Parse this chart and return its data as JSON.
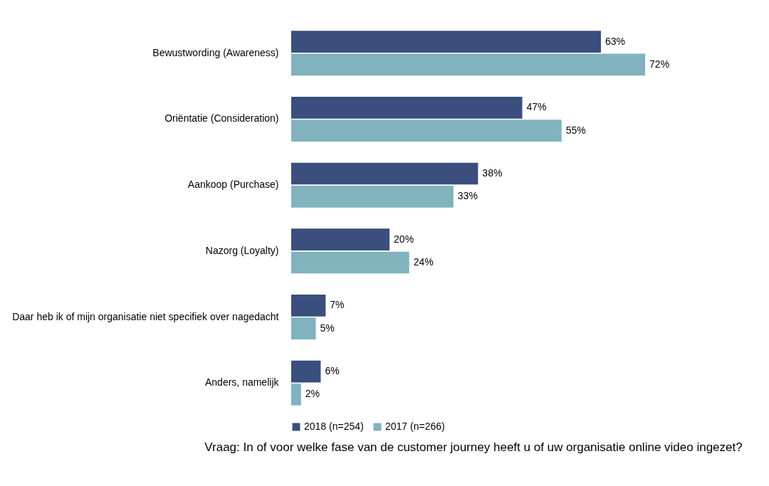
{
  "chart_data": {
    "type": "bar",
    "orientation": "horizontal",
    "categories": [
      "Bewustwording (Awareness)",
      "Oriëntatie (Consideration)",
      "Aankoop (Purchase)",
      "Nazorg (Loyalty)",
      "Daar heb ik of mijn organisatie niet specifiek over nagedacht",
      "Anders, namelijk"
    ],
    "series": [
      {
        "name": "2018 (n=254)",
        "color": "#3a4f7d",
        "values": [
          63,
          47,
          38,
          20,
          7,
          6
        ],
        "value_labels": [
          "63%",
          "47%",
          "38%",
          "20%",
          "7%",
          "6%"
        ]
      },
      {
        "name": "2017 (n=266)",
        "color": "#80b3bd",
        "values": [
          72,
          55,
          33,
          24,
          5,
          2
        ],
        "value_labels": [
          "72%",
          "55%",
          "33%",
          "24%",
          "5%",
          "2%"
        ]
      }
    ],
    "legend": "bottom",
    "grid": false,
    "annotations": [
      "Vraag: In of voor welke fase van de customer journey heeft u of uw organisatie online video ingezet?"
    ]
  }
}
